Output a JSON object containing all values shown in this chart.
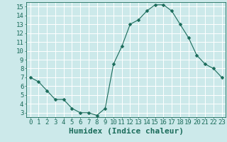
{
  "x": [
    0,
    1,
    2,
    3,
    4,
    5,
    6,
    7,
    8,
    9,
    10,
    11,
    12,
    13,
    14,
    15,
    16,
    17,
    18,
    19,
    20,
    21,
    22,
    23
  ],
  "y": [
    7.0,
    6.5,
    5.5,
    4.5,
    4.5,
    3.5,
    3.0,
    3.0,
    2.7,
    3.5,
    8.5,
    10.5,
    13.0,
    13.5,
    14.5,
    15.2,
    15.2,
    14.5,
    13.0,
    11.5,
    9.5,
    8.5,
    8.0,
    7.0
  ],
  "line_color": "#1a6b5a",
  "marker": "D",
  "marker_size": 2.5,
  "bg_color": "#cce9ea",
  "grid_color": "#ffffff",
  "xlabel": "Humidex (Indice chaleur)",
  "xlim": [
    -0.5,
    23.5
  ],
  "ylim": [
    2.5,
    15.5
  ],
  "xtick_labels": [
    "0",
    "1",
    "2",
    "3",
    "4",
    "5",
    "6",
    "7",
    "8",
    "9",
    "10",
    "11",
    "12",
    "13",
    "14",
    "15",
    "16",
    "17",
    "18",
    "19",
    "20",
    "21",
    "22",
    "23"
  ],
  "ytick_values": [
    3,
    4,
    5,
    6,
    7,
    8,
    9,
    10,
    11,
    12,
    13,
    14,
    15
  ],
  "axis_color": "#1a6b5a",
  "tick_label_color": "#1a6b5a",
  "xlabel_color": "#1a6b5a",
  "xlabel_fontsize": 8,
  "tick_fontsize": 6.5
}
